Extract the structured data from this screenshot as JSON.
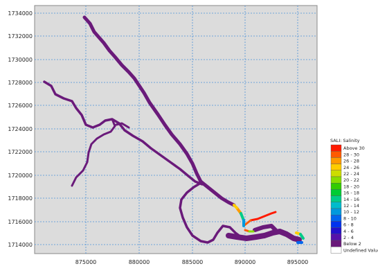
{
  "map": {
    "background_color": "#dcdcdc",
    "gridline_color": "#4a90d9",
    "channel_color": "#6a1a7a",
    "y_ticks": [
      "1734000",
      "1732000",
      "1730000",
      "1728000",
      "1726000",
      "1724000",
      "1722000",
      "1720000",
      "1718000",
      "1716000",
      "1714000"
    ],
    "x_ticks": [
      "875000",
      "880000",
      "885000",
      "890000",
      "895000"
    ]
  },
  "legend": {
    "title": "SALI: Salinity",
    "items": [
      {
        "label": "Above 30",
        "color": "#ff1a00"
      },
      {
        "label": "28 - 30",
        "color": "#ff5a00"
      },
      {
        "label": "26 - 28",
        "color": "#ff9900"
      },
      {
        "label": "24 - 26",
        "color": "#ffcc00"
      },
      {
        "label": "22 - 24",
        "color": "#ccdd00"
      },
      {
        "label": "20 - 22",
        "color": "#88dd00"
      },
      {
        "label": "18 - 20",
        "color": "#33cc00"
      },
      {
        "label": "16 - 18",
        "color": "#00cc33"
      },
      {
        "label": "14 - 16",
        "color": "#00cc88"
      },
      {
        "label": "12 - 14",
        "color": "#00bbcc"
      },
      {
        "label": "10 - 12",
        "color": "#0099dd"
      },
      {
        "label": "8 - 10",
        "color": "#0066ee"
      },
      {
        "label": "6 - 8",
        "color": "#0033ee"
      },
      {
        "label": "4 - 6",
        "color": "#2211cc"
      },
      {
        "label": "2 - 4",
        "color": "#5511aa"
      },
      {
        "label": "Below 2",
        "color": "#6a1a7a"
      },
      {
        "label": "Undefined Value",
        "color": "#ffffff"
      }
    ]
  }
}
